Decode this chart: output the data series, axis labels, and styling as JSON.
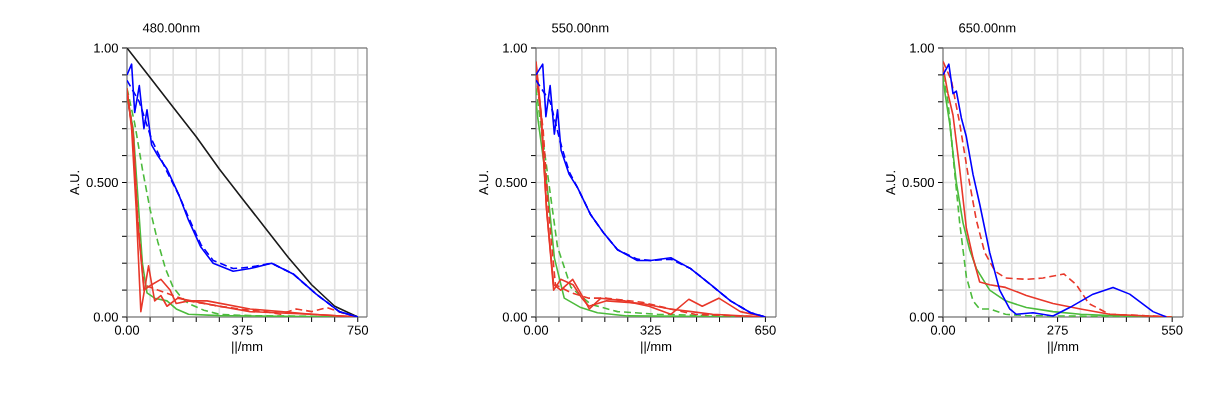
{
  "chart_data": [
    {
      "type": "line",
      "title": "480.00nm",
      "xlabel": "||/mm",
      "ylabel": "A.U.",
      "xlim": [
        0,
        780
      ],
      "ylim": [
        0,
        1
      ],
      "xticks": [
        {
          "value": 0,
          "label": "0.00"
        },
        {
          "value": 75,
          "label": null
        },
        {
          "value": 150,
          "label": null
        },
        {
          "value": 225,
          "label": null
        },
        {
          "value": 300,
          "label": null
        },
        {
          "value": 375,
          "label": "375"
        },
        {
          "value": 450,
          "label": null
        },
        {
          "value": 525,
          "label": null
        },
        {
          "value": 600,
          "label": null
        },
        {
          "value": 675,
          "label": null
        },
        {
          "value": 750,
          "label": "750"
        }
      ],
      "yticks": [
        {
          "value": 0,
          "label": "0.00"
        },
        {
          "value": 0.1,
          "label": null
        },
        {
          "value": 0.2,
          "label": null
        },
        {
          "value": 0.3,
          "label": null
        },
        {
          "value": 0.4,
          "label": null
        },
        {
          "value": 0.5,
          "label": "0.500"
        },
        {
          "value": 0.6,
          "label": null
        },
        {
          "value": 0.7,
          "label": null
        },
        {
          "value": 0.8,
          "label": null
        },
        {
          "value": 0.9,
          "label": null
        },
        {
          "value": 1,
          "label": "1.00"
        }
      ],
      "grid": true,
      "series": [
        {
          "color": "#1a1a1a",
          "line_style": "solid",
          "x": [
            0,
            75,
            150,
            225,
            300,
            375,
            450,
            525,
            600,
            675,
            750
          ],
          "values": [
            1,
            0.89,
            0.78,
            0.67,
            0.55,
            0.44,
            0.33,
            0.22,
            0.12,
            0.04,
            0
          ]
        },
        {
          "color": "#4cbb3c",
          "line_style": "solid",
          "x": [
            0,
            20,
            35,
            50,
            65,
            90,
            130,
            160,
            200,
            300,
            750
          ],
          "values": [
            0.82,
            0.7,
            0.45,
            0.2,
            0.09,
            0.07,
            0.06,
            0.03,
            0.01,
            0.005,
            0
          ]
        },
        {
          "color": "#4cbb3c",
          "line_style": "dashed",
          "x": [
            0,
            25,
            50,
            75,
            100,
            125,
            150,
            175,
            200,
            250,
            300,
            400,
            750
          ],
          "values": [
            0.85,
            0.72,
            0.55,
            0.4,
            0.28,
            0.18,
            0.11,
            0.075,
            0.05,
            0.025,
            0.01,
            0.005,
            0
          ]
        },
        {
          "color": "#e8382a",
          "line_style": "solid",
          "x": [
            0,
            15,
            30,
            45,
            70,
            90,
            110,
            130,
            165,
            210,
            300,
            400,
            500,
            600,
            750
          ],
          "values": [
            0.85,
            0.7,
            0.4,
            0.02,
            0.19,
            0.06,
            0.08,
            0.04,
            0.07,
            0.06,
            0.04,
            0.02,
            0.015,
            0.01,
            0
          ]
        },
        {
          "color": "#e8382a",
          "line_style": "solid",
          "x": [
            0,
            20,
            35,
            55,
            80,
            110,
            140,
            160,
            200,
            260,
            330,
            400,
            500,
            600,
            750
          ],
          "values": [
            0.83,
            0.68,
            0.35,
            0.1,
            0.12,
            0.14,
            0.1,
            0.05,
            0.06,
            0.06,
            0.045,
            0.03,
            0.02,
            0.01,
            0
          ]
        },
        {
          "color": "#e8382a",
          "line_style": "dashed",
          "x": [
            0,
            20,
            35,
            55,
            100,
            200,
            300,
            400,
            450,
            500,
            550,
            600,
            650,
            700,
            750
          ],
          "values": [
            0.84,
            0.68,
            0.36,
            0.12,
            0.1,
            0.06,
            0.04,
            0.025,
            0.02,
            0.01,
            0.03,
            0.02,
            0.035,
            0.015,
            0
          ]
        },
        {
          "color": "#0000ff",
          "line_style": "dashed",
          "x": [
            0,
            40,
            80,
            130,
            170,
            200,
            240,
            280,
            345,
            400,
            470,
            540,
            615,
            690,
            750
          ],
          "values": [
            0.88,
            0.8,
            0.66,
            0.54,
            0.45,
            0.37,
            0.27,
            0.21,
            0.18,
            0.185,
            0.2,
            0.16,
            0.085,
            0.02,
            0
          ]
        },
        {
          "color": "#0000ff",
          "line_style": "solid",
          "x": [
            0,
            15,
            25,
            40,
            55,
            65,
            80,
            100,
            130,
            170,
            200,
            240,
            280,
            345,
            400,
            470,
            540,
            615,
            690,
            750
          ],
          "values": [
            0.9,
            0.94,
            0.76,
            0.86,
            0.7,
            0.77,
            0.64,
            0.6,
            0.55,
            0.45,
            0.36,
            0.26,
            0.2,
            0.17,
            0.18,
            0.2,
            0.16,
            0.085,
            0.02,
            0
          ]
        }
      ]
    },
    {
      "type": "line",
      "title": "550.00nm",
      "xlabel": "||/mm",
      "ylabel": "A.U.",
      "xlim": [
        0,
        680
      ],
      "ylim": [
        0,
        1
      ],
      "xticks": [
        {
          "value": 0,
          "label": "0.00"
        },
        {
          "value": 65,
          "label": null
        },
        {
          "value": 130,
          "label": null
        },
        {
          "value": 195,
          "label": null
        },
        {
          "value": 260,
          "label": null
        },
        {
          "value": 325,
          "label": "325"
        },
        {
          "value": 390,
          "label": null
        },
        {
          "value": 455,
          "label": null
        },
        {
          "value": 520,
          "label": null
        },
        {
          "value": 585,
          "label": null
        },
        {
          "value": 650,
          "label": "650"
        }
      ],
      "yticks": [
        {
          "value": 0,
          "label": "0.00"
        },
        {
          "value": 0.1,
          "label": null
        },
        {
          "value": 0.2,
          "label": null
        },
        {
          "value": 0.3,
          "label": null
        },
        {
          "value": 0.4,
          "label": null
        },
        {
          "value": 0.5,
          "label": "0.500"
        },
        {
          "value": 0.6,
          "label": null
        },
        {
          "value": 0.7,
          "label": null
        },
        {
          "value": 0.8,
          "label": null
        },
        {
          "value": 0.9,
          "label": null
        },
        {
          "value": 1,
          "label": "1.00"
        }
      ],
      "grid": true,
      "series": [
        {
          "color": "#4cbb3c",
          "line_style": "solid",
          "x": [
            0,
            5,
            33,
            52,
            80,
            127,
            174,
            259,
            650
          ],
          "values": [
            0.8,
            0.74,
            0.47,
            0.22,
            0.07,
            0.035,
            0.016,
            0.004,
            0
          ]
        },
        {
          "color": "#4cbb3c",
          "line_style": "dashed",
          "x": [
            0,
            10,
            33,
            61,
            99,
            155,
            231,
            344,
            650
          ],
          "values": [
            0.85,
            0.75,
            0.53,
            0.26,
            0.11,
            0.047,
            0.02,
            0.01,
            0
          ]
        },
        {
          "color": "#e8382a",
          "line_style": "solid",
          "x": [
            0,
            15,
            30,
            50,
            70,
            105,
            130,
            150,
            200,
            300,
            380,
            440,
            500,
            650
          ],
          "values": [
            0.95,
            0.75,
            0.4,
            0.1,
            0.14,
            0.12,
            0.07,
            0.04,
            0.06,
            0.05,
            0.03,
            0.02,
            0.01,
            0
          ]
        },
        {
          "color": "#e8382a",
          "line_style": "solid",
          "x": [
            0,
            15,
            30,
            50,
            70,
            104,
            130,
            151,
            184,
            250,
            320,
            382,
            433,
            471,
            518,
            579,
            650
          ],
          "values": [
            0.94,
            0.73,
            0.4,
            0.12,
            0.1,
            0.14,
            0.08,
            0.03,
            0.07,
            0.06,
            0.04,
            0.01,
            0.066,
            0.04,
            0.07,
            0.02,
            0
          ]
        },
        {
          "color": "#e8382a",
          "line_style": "dashed",
          "x": [
            0,
            20,
            35,
            55,
            100,
            150,
            200,
            300,
            380,
            450,
            650
          ],
          "values": [
            0.9,
            0.7,
            0.4,
            0.12,
            0.09,
            0.07,
            0.07,
            0.055,
            0.03,
            0.01,
            0
          ]
        },
        {
          "color": "#0000ff",
          "line_style": "dashed",
          "x": [
            0,
            40,
            71,
            94,
            118,
            155,
            193,
            231,
            287,
            325,
            382,
            438,
            495,
            551,
            608,
            650
          ],
          "values": [
            0.88,
            0.8,
            0.64,
            0.54,
            0.48,
            0.38,
            0.31,
            0.25,
            0.215,
            0.21,
            0.215,
            0.18,
            0.12,
            0.06,
            0.016,
            0
          ]
        },
        {
          "color": "#0000ff",
          "line_style": "solid",
          "x": [
            0,
            19,
            28,
            40,
            52,
            61,
            71,
            94,
            118,
            155,
            193,
            231,
            287,
            325,
            382,
            438,
            495,
            551,
            608,
            650
          ],
          "values": [
            0.9,
            0.94,
            0.745,
            0.86,
            0.68,
            0.77,
            0.62,
            0.53,
            0.48,
            0.38,
            0.31,
            0.25,
            0.21,
            0.21,
            0.22,
            0.18,
            0.12,
            0.06,
            0.016,
            0
          ]
        }
      ]
    },
    {
      "type": "line",
      "title": "650.00nm",
      "xlabel": "||/mm",
      "ylabel": "A.U.",
      "xlim": [
        0,
        576
      ],
      "ylim": [
        0,
        1
      ],
      "xticks": [
        {
          "value": 0,
          "label": "0.00"
        },
        {
          "value": 55,
          "label": null
        },
        {
          "value": 110,
          "label": null
        },
        {
          "value": 165,
          "label": null
        },
        {
          "value": 220,
          "label": null
        },
        {
          "value": 275,
          "label": "275"
        },
        {
          "value": 330,
          "label": null
        },
        {
          "value": 385,
          "label": null
        },
        {
          "value": 440,
          "label": null
        },
        {
          "value": 495,
          "label": null
        },
        {
          "value": 550,
          "label": "550"
        }
      ],
      "yticks": [
        {
          "value": 0,
          "label": "0.00"
        },
        {
          "value": 0.1,
          "label": null
        },
        {
          "value": 0.2,
          "label": null
        },
        {
          "value": 0.3,
          "label": null
        },
        {
          "value": 0.4,
          "label": null
        },
        {
          "value": 0.5,
          "label": "0.500"
        },
        {
          "value": 0.6,
          "label": null
        },
        {
          "value": 0.7,
          "label": null
        },
        {
          "value": 0.8,
          "label": null
        },
        {
          "value": 0.9,
          "label": null
        },
        {
          "value": 1,
          "label": "1.00"
        }
      ],
      "grid": true,
      "series": [
        {
          "color": "#4cbb3c",
          "line_style": "solid",
          "x": [
            0,
            16,
            32,
            48,
            64,
            80,
            112,
            150,
            200,
            264,
            330,
            400,
            550
          ],
          "values": [
            0.88,
            0.72,
            0.5,
            0.35,
            0.25,
            0.18,
            0.1,
            0.06,
            0.035,
            0.02,
            0.01,
            0.005,
            0
          ]
        },
        {
          "color": "#4cbb3c",
          "line_style": "dashed",
          "x": [
            0,
            12,
            24,
            40,
            56,
            72,
            88,
            112,
            150,
            200,
            550
          ],
          "values": [
            0.9,
            0.8,
            0.6,
            0.35,
            0.15,
            0.06,
            0.03,
            0.03,
            0.01,
            0.005,
            0
          ]
        },
        {
          "color": "#e8382a",
          "line_style": "solid",
          "x": [
            0,
            12,
            24,
            40,
            56,
            72,
            88,
            112,
            150,
            200,
            264,
            330,
            400,
            550
          ],
          "values": [
            0.93,
            0.83,
            0.75,
            0.55,
            0.33,
            0.22,
            0.13,
            0.12,
            0.11,
            0.08,
            0.05,
            0.03,
            0.01,
            0
          ]
        },
        {
          "color": "#e8382a",
          "line_style": "dashed",
          "x": [
            0,
            20,
            40,
            60,
            80,
            100,
            125,
            150,
            200,
            240,
            290,
            320,
            350,
            400,
            480,
            550
          ],
          "values": [
            0.95,
            0.88,
            0.72,
            0.53,
            0.36,
            0.24,
            0.17,
            0.145,
            0.14,
            0.145,
            0.16,
            0.12,
            0.05,
            0.01,
            0.005,
            0
          ]
        },
        {
          "color": "#0000ff",
          "line_style": "solid",
          "x": [
            0,
            14,
            24,
            32,
            44,
            56,
            72,
            88,
            112,
            136,
            160,
            176,
            216,
            264,
            304,
            360,
            408,
            448,
            504,
            536
          ],
          "values": [
            0.9,
            0.94,
            0.83,
            0.84,
            0.74,
            0.67,
            0.53,
            0.42,
            0.24,
            0.1,
            0.03,
            0.01,
            0.016,
            0.004,
            0.035,
            0.085,
            0.11,
            0.085,
            0.02,
            0
          ]
        }
      ]
    }
  ]
}
